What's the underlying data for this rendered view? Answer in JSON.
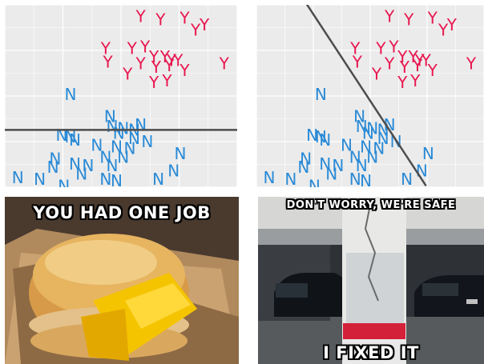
{
  "chart_data": [
    {
      "type": "scatter",
      "grid": true,
      "xlim": [
        0,
        10
      ],
      "ylim": [
        0,
        10
      ],
      "series": [
        {
          "label_marker": "Y",
          "color": "#e8174f",
          "x": [
            5.9,
            6.8,
            7.9,
            8.4,
            8.8,
            4.3,
            5.5,
            6.1,
            6.5,
            7.0,
            7.3,
            7.6,
            5.9,
            6.6,
            7.2,
            4.4,
            5.3,
            6.5,
            7.1,
            7.9,
            9.7
          ],
          "y": [
            9.7,
            9.5,
            9.6,
            8.9,
            9.2,
            7.8,
            7.8,
            7.9,
            7.3,
            7.3,
            7.1,
            7.1,
            6.9,
            6.7,
            6.8,
            7.0,
            6.3,
            5.8,
            5.9,
            6.5,
            6.9
          ]
        },
        {
          "label_marker": "N",
          "color": "#2a8ad6",
          "x": [
            2.7,
            4.5,
            5.9,
            4.6,
            5.1,
            5.6,
            2.3,
            2.7,
            2.9,
            4.9,
            5.6,
            6.2,
            3.9,
            4.8,
            5.4,
            5.1,
            2.0,
            2.9,
            4.3,
            4.6,
            3.5,
            7.7,
            1.9,
            0.3,
            1.3,
            3.2,
            7.4,
            6.7,
            4.3,
            4.8,
            2.4
          ],
          "y": [
            5.1,
            3.8,
            3.3,
            3.2,
            3.1,
            3.0,
            2.7,
            2.6,
            2.4,
            2.8,
            2.5,
            2.3,
            2.1,
            2.0,
            1.9,
            1.4,
            1.3,
            1.0,
            1.4,
            0.9,
            0.9,
            1.6,
            0.8,
            0.2,
            0.1,
            0.4,
            0.6,
            0.1,
            0.1,
            0.0,
            -0.3
          ]
        }
      ]
    },
    {
      "type": "scatter",
      "grid": true,
      "xlim": [
        0,
        10
      ],
      "ylim": [
        0,
        10
      ],
      "series": [
        {
          "label_marker": "Y",
          "color": "#e8174f",
          "x": [
            5.9,
            6.8,
            7.9,
            8.4,
            8.8,
            4.3,
            5.5,
            6.1,
            6.5,
            7.0,
            7.3,
            7.6,
            5.9,
            6.6,
            7.2,
            4.4,
            5.3,
            6.5,
            7.1,
            7.9,
            9.7
          ],
          "y": [
            9.7,
            9.5,
            9.6,
            8.9,
            9.2,
            7.8,
            7.8,
            7.9,
            7.3,
            7.3,
            7.1,
            7.1,
            6.9,
            6.7,
            6.8,
            7.0,
            6.3,
            5.8,
            5.9,
            6.5,
            6.9
          ]
        },
        {
          "label_marker": "N",
          "color": "#2a8ad6",
          "x": [
            2.7,
            4.5,
            5.9,
            4.6,
            5.1,
            5.6,
            2.3,
            2.7,
            2.9,
            4.9,
            5.6,
            6.2,
            3.9,
            4.8,
            5.4,
            5.1,
            2.0,
            2.9,
            4.3,
            4.6,
            3.5,
            7.7,
            1.9,
            0.3,
            1.3,
            3.2,
            7.4,
            6.7,
            4.3,
            4.8,
            2.4
          ],
          "y": [
            5.1,
            3.8,
            3.3,
            3.2,
            3.1,
            3.0,
            2.7,
            2.6,
            2.4,
            2.8,
            2.5,
            2.3,
            2.1,
            2.0,
            1.9,
            1.4,
            1.3,
            1.0,
            1.4,
            0.9,
            0.9,
            1.6,
            0.8,
            0.2,
            0.1,
            0.4,
            0.6,
            0.1,
            0.1,
            0.0,
            -0.3
          ]
        }
      ]
    }
  ],
  "plots": {
    "left_boundary": {
      "kind": "horizontal",
      "y": 3.0,
      "color": "#4d4d4d"
    },
    "right_boundary": {
      "kind": "diagonal",
      "x1": 2.0,
      "y1": 10.5,
      "x2": 7.6,
      "y2": -0.3,
      "color": "#4d4d4d"
    }
  },
  "memes": {
    "left_caption": "YOU HAD ONE JOB",
    "right_caption_top": "DON'T WORRY, WE'RE SAFE",
    "right_caption_bottom": "I FIXED IT"
  }
}
